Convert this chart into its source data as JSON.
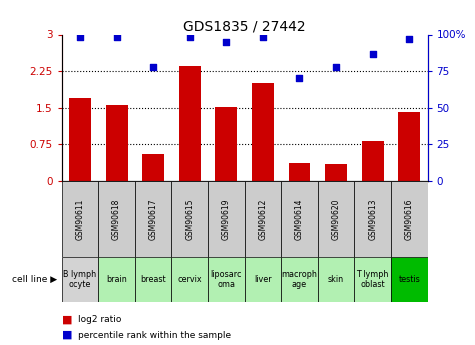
{
  "title": "GDS1835 / 27442",
  "samples": [
    "GSM90611",
    "GSM90618",
    "GSM90617",
    "GSM90615",
    "GSM90619",
    "GSM90612",
    "GSM90614",
    "GSM90620",
    "GSM90613",
    "GSM90616"
  ],
  "cell_lines": [
    "B lymph\nocyte",
    "brain",
    "breast",
    "cervix",
    "liposarc\noma",
    "liver",
    "macroph\nage",
    "skin",
    "T lymph\noblast",
    "testis"
  ],
  "cell_bg": [
    "#d3d3d3",
    "#b2f0b2",
    "#b2f0b2",
    "#b2f0b2",
    "#b2f0b2",
    "#b2f0b2",
    "#b2f0b2",
    "#b2f0b2",
    "#b2f0b2",
    "#00bb00"
  ],
  "gsm_bg": "#cccccc",
  "log2_ratio": [
    1.7,
    1.55,
    0.55,
    2.35,
    1.52,
    2.0,
    0.38,
    0.35,
    0.82,
    1.42
  ],
  "percentile_rank": [
    98,
    98,
    78,
    98,
    95,
    98,
    70,
    78,
    87,
    97
  ],
  "ylim_left": [
    0,
    3
  ],
  "ylim_right": [
    0,
    100
  ],
  "yticks_left": [
    0,
    0.75,
    1.5,
    2.25,
    3
  ],
  "yticks_right": [
    0,
    25,
    50,
    75,
    100
  ],
  "bar_color": "#cc0000",
  "dot_color": "#0000cc",
  "title_fontsize": 10,
  "axis_label_color_left": "#cc0000",
  "axis_label_color_right": "#0000cc"
}
